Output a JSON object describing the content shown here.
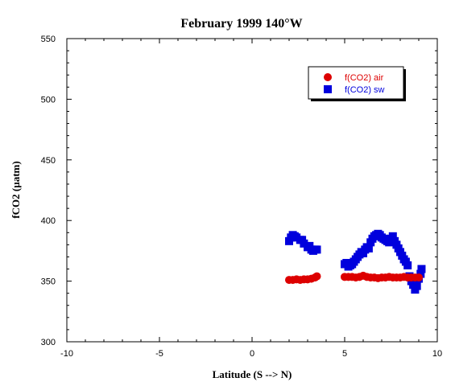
{
  "chart_data": {
    "type": "scatter",
    "title": "February 1999 140°W",
    "xlabel": "Latitude (S --> N)",
    "ylabel": "fCO2 (µatm)",
    "xlim": [
      -10,
      10
    ],
    "ylim": [
      300,
      550
    ],
    "xticks": [
      -10,
      -5,
      0,
      5,
      10
    ],
    "yticks": [
      300,
      350,
      400,
      450,
      500,
      550
    ],
    "grid": false,
    "legend_position": "top-right",
    "series": [
      {
        "name": "f(CO2) air",
        "marker": "circle",
        "color": "#dd0000",
        "points": [
          [
            2.0,
            351
          ],
          [
            2.2,
            351
          ],
          [
            2.4,
            351.5
          ],
          [
            2.6,
            351
          ],
          [
            2.8,
            351.5
          ],
          [
            3.0,
            351.5
          ],
          [
            3.2,
            352
          ],
          [
            3.4,
            353
          ],
          [
            3.5,
            354
          ],
          [
            5.0,
            353.5
          ],
          [
            5.2,
            353.5
          ],
          [
            5.4,
            353.5
          ],
          [
            5.6,
            353
          ],
          [
            5.8,
            353.5
          ],
          [
            6.0,
            354.5
          ],
          [
            6.2,
            353.5
          ],
          [
            6.4,
            353
          ],
          [
            6.6,
            353
          ],
          [
            6.8,
            352.5
          ],
          [
            7.0,
            353
          ],
          [
            7.2,
            353
          ],
          [
            7.4,
            353.5
          ],
          [
            7.6,
            353
          ],
          [
            7.8,
            353
          ],
          [
            8.0,
            353
          ],
          [
            8.2,
            353.5
          ],
          [
            8.4,
            353
          ],
          [
            8.6,
            353
          ],
          [
            8.8,
            353
          ],
          [
            9.0,
            353
          ]
        ]
      },
      {
        "name": "f(CO2) sw",
        "marker": "square",
        "color": "#0000dd",
        "points": [
          [
            2.0,
            383
          ],
          [
            2.1,
            386
          ],
          [
            2.2,
            388
          ],
          [
            2.3,
            387
          ],
          [
            2.4,
            386
          ],
          [
            2.6,
            384
          ],
          [
            2.7,
            384
          ],
          [
            2.8,
            381
          ],
          [
            3.0,
            378
          ],
          [
            3.1,
            379
          ],
          [
            3.2,
            376
          ],
          [
            3.3,
            375
          ],
          [
            3.4,
            376
          ],
          [
            3.5,
            376
          ],
          [
            5.0,
            364
          ],
          [
            5.1,
            365
          ],
          [
            5.2,
            362
          ],
          [
            5.3,
            363
          ],
          [
            5.4,
            364
          ],
          [
            5.5,
            366
          ],
          [
            5.6,
            368
          ],
          [
            5.7,
            370
          ],
          [
            5.8,
            372
          ],
          [
            5.9,
            374
          ],
          [
            6.0,
            373
          ],
          [
            6.1,
            376
          ],
          [
            6.2,
            378
          ],
          [
            6.3,
            377
          ],
          [
            6.4,
            382
          ],
          [
            6.5,
            385
          ],
          [
            6.6,
            387
          ],
          [
            6.7,
            388
          ],
          [
            6.8,
            389
          ],
          [
            6.9,
            388
          ],
          [
            7.0,
            386
          ],
          [
            7.1,
            385
          ],
          [
            7.2,
            384
          ],
          [
            7.3,
            383
          ],
          [
            7.4,
            382
          ],
          [
            7.5,
            385
          ],
          [
            7.6,
            387
          ],
          [
            7.7,
            383
          ],
          [
            7.8,
            380
          ],
          [
            7.9,
            377
          ],
          [
            8.0,
            374
          ],
          [
            8.1,
            371
          ],
          [
            8.2,
            368
          ],
          [
            8.3,
            366
          ],
          [
            8.4,
            363
          ],
          [
            8.5,
            354
          ],
          [
            8.6,
            350
          ],
          [
            8.7,
            347
          ],
          [
            8.8,
            343
          ],
          [
            8.9,
            346
          ],
          [
            9.0,
            352
          ],
          [
            9.1,
            356
          ],
          [
            9.15,
            360
          ]
        ]
      }
    ]
  }
}
